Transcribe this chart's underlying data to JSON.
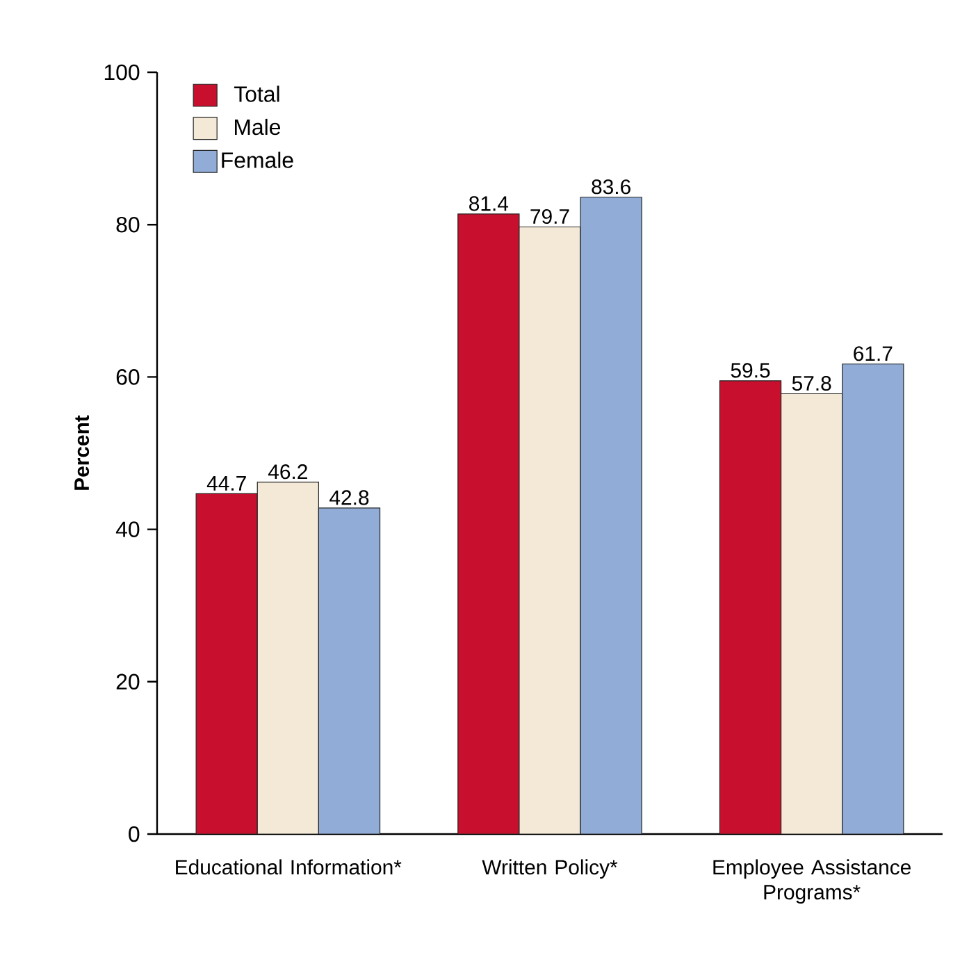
{
  "chart_data": {
    "type": "bar",
    "ylabel": "Percent",
    "categories": [
      "Educational Information*",
      "Written Policy*",
      "Employee Assistance Programs*"
    ],
    "series": [
      {
        "name": "Total",
        "color": "#c8102e",
        "values": [
          44.7,
          81.4,
          59.5
        ]
      },
      {
        "name": "Male",
        "color": "#f3e9d6",
        "values": [
          46.2,
          79.7,
          57.8
        ]
      },
      {
        "name": "Female",
        "color": "#91acd6",
        "values": [
          42.8,
          83.6,
          61.7
        ]
      }
    ],
    "ylim": [
      0,
      100
    ],
    "yticks": [
      0,
      20,
      40,
      60,
      80,
      100
    ],
    "legend": "top left",
    "data_labels": true
  }
}
